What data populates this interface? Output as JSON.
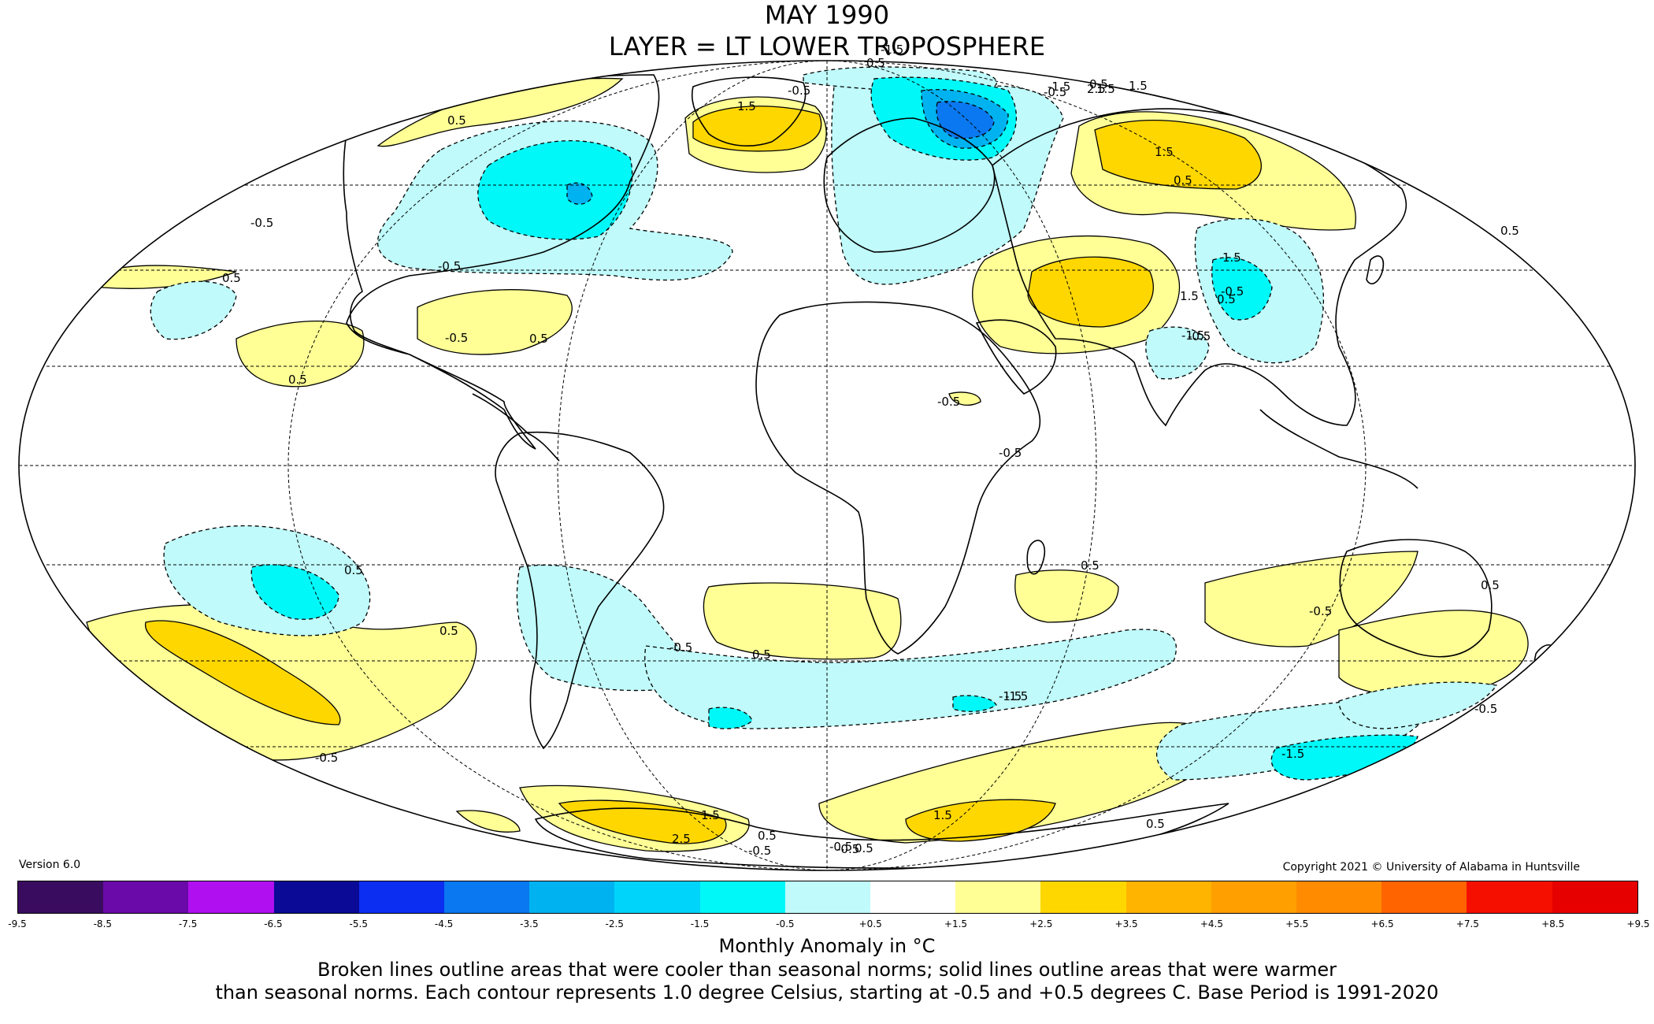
{
  "title": {
    "line1": "MAY 1990",
    "line2": "LAYER = LT LOWER TROPOSPHERE"
  },
  "version": "Version 6.0",
  "copyright": "Copyright 2021 © University of Alabama in Huntsville",
  "colorbar": {
    "ticks": [
      "-9.5",
      "-8.5",
      "-7.5",
      "-6.5",
      "-5.5",
      "-4.5",
      "-3.5",
      "-2.5",
      "-1.5",
      "-0.5",
      "+0.5",
      "+1.5",
      "+2.5",
      "+3.5",
      "+4.5",
      "+5.5",
      "+6.5",
      "+7.5",
      "+8.5",
      "+9.5"
    ],
    "colors": [
      "#3a0c5f",
      "#6a0aa8",
      "#b00ff0",
      "#0a0a96",
      "#0b2ef0",
      "#0a78f0",
      "#00b2f0",
      "#00d4fa",
      "#00f8f8",
      "#c0fafa",
      "#ffffff",
      "#ffff96",
      "#ffd700",
      "#ffb400",
      "#ffa000",
      "#ff8c00",
      "#ff6400",
      "#f50f00",
      "#e60000",
      "#c00000"
    ]
  },
  "unit_label": "Monthly Anomaly in °C",
  "caption": {
    "line1": "Broken lines outline areas that were cooler than seasonal norms; solid lines outline areas that were warmer",
    "line2": "than seasonal norms. Each contour represents 1.0 degree Celsius, starting at -0.5 and +0.5 degrees C. Base Period is 1991-2020"
  },
  "contour_labels": [
    "0.5",
    "1.5",
    "-0.5",
    "-1.5",
    "2.5",
    "0.5",
    "-0.5",
    "1.5",
    "-1.5",
    "0.5",
    "-0.5",
    "0.5",
    "0.5",
    "1.5",
    "-0.5",
    "-1.5",
    "0.5",
    "-0.5",
    "-0.5",
    "1.5",
    "-0.5",
    "0.5",
    "0.5",
    "-0.5",
    "0.5",
    "0.5",
    "-0.5",
    "-1.5",
    "0.5",
    "-0.5",
    "1.5",
    "0.5",
    "-0.5",
    "-1.5",
    "0.5",
    "-0.5",
    "1.5",
    "0.5",
    "-1.5",
    "-0.5",
    "-0.5",
    "0.5",
    "1.5",
    "2.5",
    "-0.5",
    "1.5",
    "0.5",
    "-0.5",
    "0.5"
  ]
}
